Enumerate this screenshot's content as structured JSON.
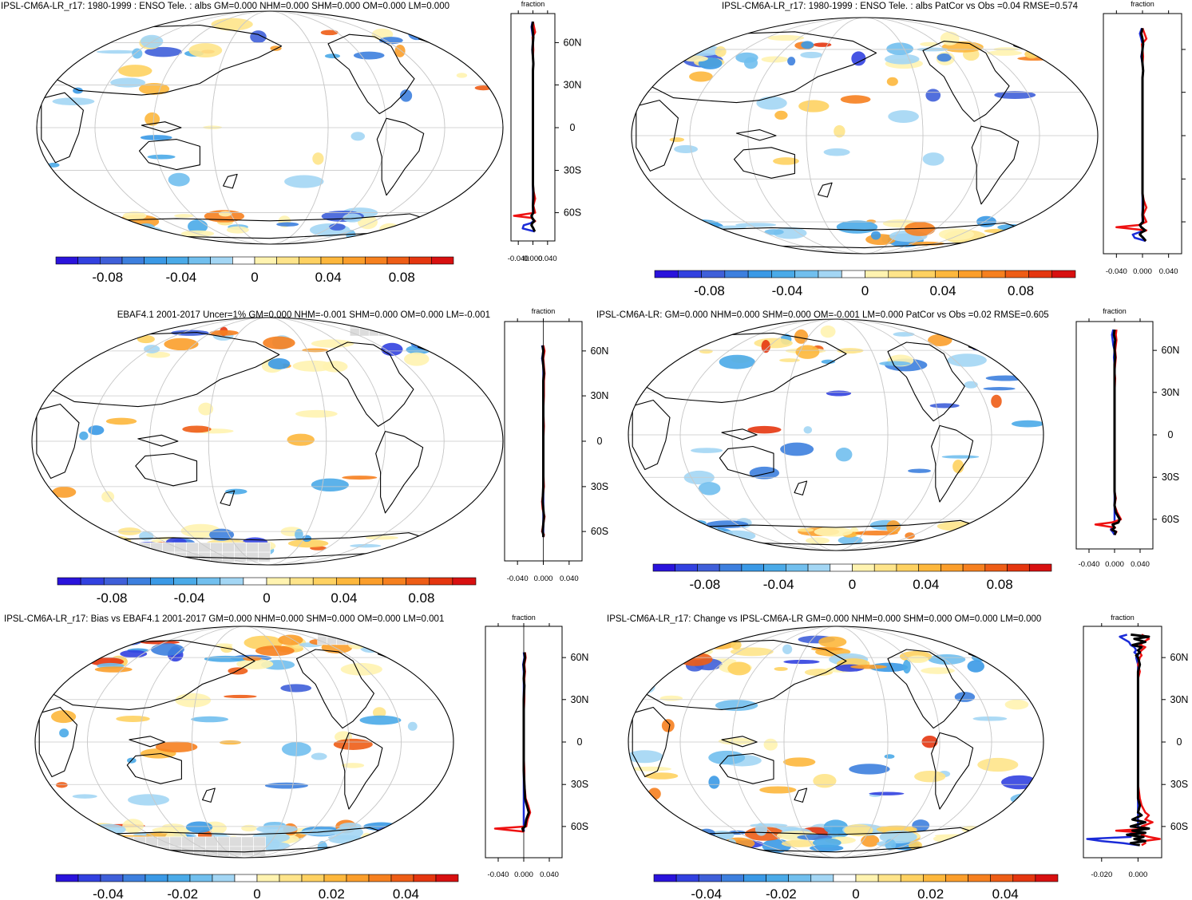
{
  "colors": {
    "negative_ramp": [
      "#2a13dc",
      "#3241e0",
      "#3f5fd9",
      "#3d7fde",
      "#3a99e6",
      "#4aaae8",
      "#71bfee",
      "#a3d6f4"
    ],
    "positive_ramp": [
      "#fff3b0",
      "#fee48a",
      "#fed161",
      "#fdb73c",
      "#fb9e2b",
      "#f6801f",
      "#ee5d16",
      "#e5360f",
      "#d81010"
    ],
    "land_mask": "#dcdcdc",
    "line_black": "#000000",
    "line_red": "#ee1111",
    "line_blue": "#1a2bd8"
  },
  "chart_data": [
    {
      "type": "map-with-zonal-profile",
      "title": "IPSL-CM6A-LR_r17: 1980-1999 : ENSO Tele. : albs GM=0.000 NHM=0.000 SHM=0.000 OM=0.000 LM=0.000",
      "colorbar_labels": [
        "-0.08",
        "-0.04",
        "0",
        "0.04",
        "0.08"
      ],
      "profile_xlabel": "fraction",
      "profile_xticks": [
        "-0.040",
        "0.000",
        "0.040"
      ],
      "profile_xlim": [
        -0.06,
        0.06
      ],
      "profile_yticks": [
        "60N",
        "30N",
        "0",
        "30S",
        "60S"
      ],
      "show_ytick_labels": true,
      "lat": [
        80,
        75,
        70,
        65,
        60,
        55,
        50,
        45,
        40,
        30,
        20,
        10,
        0,
        -10,
        -20,
        -30,
        -40,
        -45,
        -50,
        -55,
        -60,
        -63,
        -65,
        -68,
        -70,
        -72,
        -75,
        -78
      ],
      "series": [
        {
          "name": "all",
          "color": "line_black",
          "values": [
            0.0,
            -0.002,
            0.0,
            0.001,
            0.0,
            -0.001,
            0.0,
            0.001,
            0.0,
            0.0,
            0.0,
            0.0,
            0.0,
            0.0,
            0.0,
            0.0,
            0.0,
            0.001,
            0.001,
            0.0,
            0.001,
            -0.004,
            -0.002,
            0.004,
            -0.002,
            -0.004,
            0.001,
            0.005
          ]
        },
        {
          "name": "ocean",
          "color": "line_red",
          "values": [
            0.0,
            0.003,
            0.006,
            -0.001,
            0.0,
            0.001,
            0.0,
            0.001,
            0.0,
            0.0,
            0.0,
            0.0,
            0.0,
            0.0,
            0.0,
            0.0,
            0.0,
            0.002,
            0.006,
            0.001,
            0.006,
            -0.052,
            -0.003,
            0.006,
            -0.002,
            -0.004,
            0.001,
            0.005
          ]
        },
        {
          "name": "land",
          "color": "line_blue",
          "values": [
            -0.001,
            -0.004,
            -0.002,
            0.0,
            0.0,
            -0.002,
            0.0,
            0.001,
            0.0,
            0.0,
            0.0,
            0.0,
            0.0,
            0.0,
            0.0,
            0.0,
            0.0,
            0.0,
            0.0,
            0.0,
            0.0,
            -0.003,
            -0.002,
            0.002,
            -0.006,
            -0.025,
            -0.028,
            0.005
          ]
        }
      ]
    },
    {
      "type": "map-with-zonal-profile",
      "title": "IPSL-CM6A-LR_r17: 1980-1999 : ENSO Tele. : albs PatCor vs Obs =0.04 RMSE=0.574",
      "colorbar_labels": [
        "-0.08",
        "-0.04",
        "0",
        "0.04",
        "0.08"
      ],
      "profile_xlabel": "fraction",
      "profile_xticks": [
        "-0.040",
        "0.000",
        "0.040"
      ],
      "profile_xlim": [
        -0.06,
        0.06
      ],
      "profile_yticks": [
        "60N",
        "30N",
        "0",
        "30S",
        "60S"
      ],
      "show_ytick_labels": false,
      "lat": [
        80,
        75,
        70,
        65,
        60,
        55,
        50,
        45,
        40,
        30,
        20,
        10,
        0,
        -10,
        -20,
        -30,
        -40,
        -45,
        -50,
        -55,
        -60,
        -63,
        -65,
        -68,
        -70,
        -72,
        -75,
        -78
      ],
      "series": [
        {
          "name": "all",
          "color": "line_black",
          "values": [
            0.0,
            -0.002,
            0.0,
            0.001,
            0.0,
            -0.001,
            0.0,
            0.001,
            0.0,
            0.0,
            0.0,
            0.0,
            0.0,
            0.0,
            0.0,
            0.0,
            0.0,
            0.001,
            0.001,
            0.0,
            0.001,
            -0.004,
            -0.002,
            0.004,
            -0.002,
            -0.004,
            0.001,
            0.005
          ]
        },
        {
          "name": "ocean",
          "color": "line_red",
          "values": [
            0.0,
            0.003,
            0.006,
            -0.001,
            0.0,
            0.001,
            0.0,
            0.001,
            0.0,
            0.0,
            0.0,
            0.0,
            0.0,
            0.0,
            0.0,
            0.0,
            0.0,
            0.002,
            0.006,
            0.001,
            0.006,
            -0.005,
            -0.04,
            0.006,
            -0.002,
            -0.004,
            0.001,
            0.005
          ]
        },
        {
          "name": "land",
          "color": "line_blue",
          "values": [
            -0.001,
            -0.004,
            -0.002,
            0.0,
            0.0,
            -0.002,
            0.0,
            0.001,
            0.0,
            0.0,
            0.0,
            0.0,
            0.0,
            0.0,
            0.0,
            0.0,
            0.0,
            0.0,
            0.0,
            0.0,
            0.0,
            -0.003,
            -0.002,
            0.002,
            -0.006,
            -0.015,
            -0.012,
            0.005
          ]
        }
      ]
    },
    {
      "type": "map-with-zonal-profile",
      "title": "EBAF4.1 2001-2017 Uncer=1% GM=0.000 NHM=-0.001 SHM=0.000 OM=0.000 LM=-0.001",
      "colorbar_labels": [
        "-0.08",
        "-0.04",
        "0",
        "0.04",
        "0.08"
      ],
      "profile_xlabel": "fraction",
      "profile_xticks": [
        "-0.040",
        "0.000",
        "0.040"
      ],
      "profile_xlim": [
        -0.06,
        0.06
      ],
      "profile_yticks": [
        "60N",
        "30N",
        "0",
        "30S",
        "60S"
      ],
      "show_ytick_labels": true,
      "lat": [
        65,
        60,
        55,
        50,
        45,
        40,
        30,
        20,
        10,
        0,
        -10,
        -20,
        -30,
        -40,
        -45,
        -50,
        -55,
        -60,
        -63,
        -65
      ],
      "series": [
        {
          "name": "all",
          "color": "line_black",
          "values": [
            -0.001,
            0.0,
            -0.001,
            0.0,
            0.001,
            0.0,
            0.0,
            0.0,
            0.0,
            0.0,
            0.0,
            0.0,
            0.0,
            -0.001,
            0.0,
            0.001,
            0.0,
            -0.001,
            0.0,
            0.0
          ]
        },
        {
          "name": "ocean",
          "color": "line_red",
          "values": [
            0.0,
            0.002,
            0.0,
            0.001,
            0.002,
            0.001,
            0.001,
            0.0,
            0.001,
            0.0,
            0.0,
            0.0,
            0.001,
            -0.002,
            -0.001,
            0.002,
            0.0,
            -0.002,
            0.001,
            0.0
          ]
        },
        {
          "name": "land",
          "color": "line_blue",
          "values": [
            -0.002,
            0.0,
            -0.002,
            0.0,
            0.0,
            0.0,
            0.0,
            0.0,
            0.0,
            0.0,
            0.0,
            0.0,
            0.0,
            0.0,
            0.0,
            0.0,
            0.0,
            0.0,
            0.0,
            0.0
          ]
        }
      ]
    },
    {
      "type": "map-with-zonal-profile",
      "title": "IPSL-CM6A-LR: GM=0.000 NHM=0.000 SHM=0.000 OM=-0.001 LM=0.000 PatCor vs Obs =0.02 RMSE=0.605",
      "colorbar_labels": [
        "-0.08",
        "-0.04",
        "0",
        "0.04",
        "0.08"
      ],
      "profile_xlabel": "fraction",
      "profile_xticks": [
        "-0.040",
        "0.000",
        "0.040"
      ],
      "profile_xlim": [
        -0.06,
        0.06
      ],
      "profile_yticks": [
        "60N",
        "30N",
        "0",
        "30S",
        "60S"
      ],
      "show_ytick_labels": true,
      "lat": [
        80,
        75,
        70,
        65,
        60,
        55,
        50,
        45,
        40,
        30,
        20,
        10,
        0,
        -10,
        -20,
        -30,
        -40,
        -45,
        -50,
        -55,
        -60,
        -63,
        -65,
        -68,
        -70,
        -72,
        -75
      ],
      "series": [
        {
          "name": "all",
          "color": "line_black",
          "values": [
            0.0,
            -0.001,
            0.001,
            0.0,
            0.0,
            0.001,
            0.0,
            0.0,
            0.0,
            0.0,
            0.0,
            0.0,
            0.0,
            0.0,
            0.0,
            0.0,
            0.0,
            0.001,
            0.0,
            0.002,
            0.008,
            0.006,
            -0.003,
            0.0,
            -0.004,
            0.002,
            0.0
          ]
        },
        {
          "name": "ocean",
          "color": "line_red",
          "values": [
            0.003,
            0.002,
            0.003,
            0.002,
            0.001,
            0.002,
            0.001,
            0.0,
            0.001,
            0.0,
            0.0,
            0.0,
            0.0,
            0.0,
            0.0,
            0.0,
            0.0,
            0.002,
            0.0,
            0.004,
            0.01,
            -0.004,
            -0.03,
            0.001,
            -0.005,
            0.003,
            0.0
          ]
        },
        {
          "name": "land",
          "color": "line_blue",
          "values": [
            -0.002,
            -0.004,
            -0.003,
            -0.002,
            0.0,
            -0.001,
            0.0,
            0.0,
            0.0,
            0.0,
            0.0,
            0.0,
            0.0,
            0.0,
            0.0,
            0.0,
            0.0,
            0.0,
            0.0,
            0.0,
            0.0,
            0.0,
            -0.002,
            -0.004,
            -0.006,
            -0.003,
            0.0
          ]
        }
      ]
    },
    {
      "type": "map-with-zonal-profile",
      "title": "IPSL-CM6A-LR_r17: Bias vs EBAF4.1 2001-2017 GM=0.000 NHM=0.000 SHM=0.000 OM=0.000 LM=0.001",
      "colorbar_labels": [
        "-0.04",
        "-0.02",
        "0",
        "0.02",
        "0.04"
      ],
      "profile_xlabel": "fraction",
      "profile_xticks": [
        "-0.040",
        "0.000",
        "0.040"
      ],
      "profile_xlim": [
        -0.06,
        0.06
      ],
      "profile_yticks": [
        "60N",
        "30N",
        "0",
        "30S",
        "60S"
      ],
      "show_ytick_labels": true,
      "lat": [
        65,
        60,
        55,
        50,
        45,
        40,
        30,
        20,
        10,
        0,
        -10,
        -20,
        -30,
        -40,
        -45,
        -50,
        -55,
        -60,
        -62,
        -65
      ],
      "series": [
        {
          "name": "all",
          "color": "line_black",
          "values": [
            0.001,
            0.002,
            0.0,
            0.001,
            0.0,
            0.001,
            0.0,
            0.0,
            0.0,
            0.0,
            0.0,
            0.0,
            0.001,
            0.002,
            0.005,
            0.008,
            0.004,
            0.002,
            -0.002,
            0.0
          ]
        },
        {
          "name": "ocean",
          "color": "line_red",
          "values": [
            0.002,
            0.003,
            0.001,
            0.002,
            0.001,
            0.001,
            0.001,
            0.0,
            0.0,
            0.0,
            0.0,
            0.001,
            0.001,
            0.003,
            0.007,
            0.01,
            0.006,
            0.004,
            -0.045,
            0.001
          ]
        },
        {
          "name": "land",
          "color": "line_blue",
          "values": [
            0.0,
            0.001,
            -0.001,
            0.0,
            0.0,
            0.0,
            0.0,
            0.0,
            0.0,
            0.0,
            0.0,
            0.0,
            0.0,
            0.0,
            0.0,
            0.0,
            0.0,
            0.0,
            0.0,
            0.0
          ]
        }
      ]
    },
    {
      "type": "map-with-zonal-profile",
      "title": "IPSL-CM6A-LR_r17: Change vs IPSL-CM6A-LR GM=0.000 NHM=0.000 SHM=0.000 OM=0.000 LM=0.000",
      "colorbar_labels": [
        "-0.04",
        "-0.02",
        "0",
        "0.02",
        "0.04"
      ],
      "profile_xlabel": "fraction",
      "profile_xticks": [
        "-0.020",
        "0.000"
      ],
      "profile_xlim": [
        -0.03,
        0.013
      ],
      "profile_yticks": [
        "60N",
        "30N",
        "0",
        "30S",
        "60S"
      ],
      "show_ytick_labels": true,
      "lat": [
        82,
        80,
        78,
        75,
        72,
        70,
        67,
        65,
        62,
        60,
        55,
        50,
        45,
        40,
        30,
        20,
        10,
        0,
        -10,
        -20,
        -30,
        -40,
        -45,
        -50,
        -52,
        -55,
        -57,
        -60,
        -62,
        -64,
        -66,
        -68,
        -70,
        -72,
        -74,
        -76,
        -78
      ],
      "series": [
        {
          "name": "all",
          "color": "line_black",
          "values": [
            -0.004,
            0.006,
            -0.002,
            0.004,
            -0.003,
            0.002,
            0.0,
            0.001,
            -0.001,
            0.0,
            0.001,
            0.0,
            0.0,
            0.0,
            0.0,
            0.0,
            0.0,
            0.0,
            0.0,
            0.0,
            0.0,
            0.0,
            0.001,
            0.0,
            0.002,
            -0.003,
            0.004,
            -0.004,
            0.006,
            -0.003,
            0.004,
            -0.006,
            0.003,
            -0.002,
            0.004,
            -0.004,
            0.001
          ]
        },
        {
          "name": "ocean",
          "color": "line_red",
          "values": [
            0.002,
            0.004,
            0.006,
            0.003,
            0.001,
            0.004,
            0.002,
            0.001,
            0.002,
            0.001,
            0.0,
            0.001,
            0.0,
            0.0,
            0.0,
            0.0,
            0.0,
            0.0,
            0.0,
            0.0,
            0.0,
            0.001,
            0.002,
            0.004,
            0.006,
            0.004,
            0.008,
            0.002,
            0.006,
            -0.012,
            0.004,
            0.002,
            0.006,
            0.012,
            0.003,
            0.004,
            0.002
          ]
        },
        {
          "name": "land",
          "color": "line_blue",
          "values": [
            -0.006,
            -0.01,
            -0.008,
            -0.005,
            -0.004,
            -0.002,
            -0.001,
            -0.002,
            0.0,
            -0.001,
            0.0,
            0.0,
            0.0,
            0.0,
            0.0,
            0.0,
            0.0,
            0.0,
            0.0,
            0.0,
            0.0,
            0.0,
            0.0,
            0.0,
            0.0,
            0.0,
            0.0,
            0.0,
            0.0,
            0.0,
            -0.002,
            -0.006,
            -0.004,
            -0.028,
            -0.02,
            -0.008,
            0.0
          ]
        }
      ]
    }
  ]
}
